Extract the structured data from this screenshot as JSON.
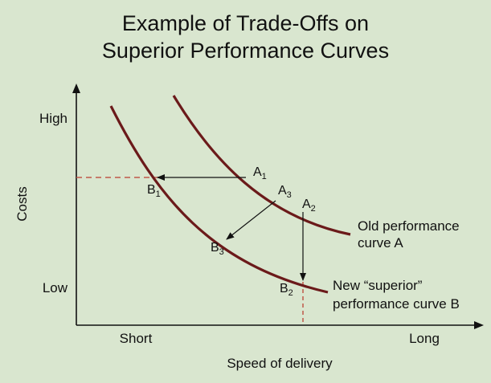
{
  "title": {
    "line1": "Example of Trade-Offs on",
    "line2": "Superior Performance Curves"
  },
  "axes": {
    "y_label": "Costs",
    "y_high": "High",
    "y_low": "Low",
    "x_label": "Speed of delivery",
    "x_short": "Short",
    "x_long": "Long"
  },
  "curves": {
    "old": {
      "line1": "Old performance",
      "line2": "curve A",
      "color": "#6b1a1a"
    },
    "new": {
      "line1": "New “superior”",
      "line2": "performance curve B",
      "color": "#6b1a1a"
    }
  },
  "points": {
    "A1": {
      "letter": "A",
      "sub": "1"
    },
    "A2": {
      "letter": "A",
      "sub": "2"
    },
    "A3": {
      "letter": "A",
      "sub": "3"
    },
    "B1": {
      "letter": "B",
      "sub": "1"
    },
    "B2": {
      "letter": "B",
      "sub": "2"
    },
    "B3": {
      "letter": "B",
      "sub": "3"
    }
  },
  "colors": {
    "background": "#d9e6cf",
    "dashed": "#c0584a",
    "axis": "#111111"
  }
}
